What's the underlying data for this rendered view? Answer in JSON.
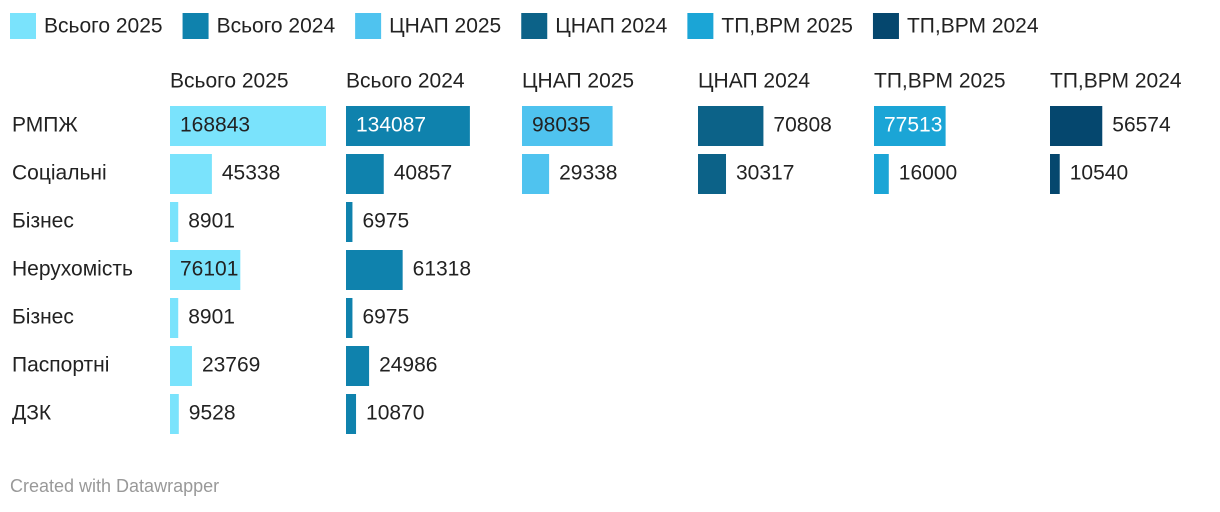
{
  "chart_data": {
    "type": "bar",
    "categories": [
      "РМПЖ",
      "Соціальні",
      "Бізнес",
      "Нерухомість",
      "Бізнес",
      "Паспортні",
      "ДЗК"
    ],
    "series": [
      {
        "name": "Всього 2025",
        "color": "#7ae3fc",
        "values": [
          168843,
          45338,
          8901,
          76101,
          8901,
          23769,
          9528
        ]
      },
      {
        "name": "Всього 2024",
        "color": "#0f82ad",
        "values": [
          134087,
          40857,
          6975,
          61318,
          6975,
          24986,
          10870
        ]
      },
      {
        "name": "ЦНАП 2025",
        "color": "#4fc3ef",
        "values": [
          98035,
          29338,
          null,
          null,
          null,
          null,
          null
        ]
      },
      {
        "name": "ЦНАП 2024",
        "color": "#0c6288",
        "values": [
          70808,
          30317,
          null,
          null,
          null,
          null,
          null
        ]
      },
      {
        "name": "ТП,ВРМ 2025",
        "color": "#1ba5d6",
        "values": [
          77513,
          16000,
          null,
          null,
          null,
          null,
          null
        ]
      },
      {
        "name": "ТП,ВРМ 2024",
        "color": "#05476e",
        "values": [
          56574,
          10540,
          null,
          null,
          null,
          null,
          null
        ]
      }
    ],
    "credit": "Created with Datawrapper"
  }
}
